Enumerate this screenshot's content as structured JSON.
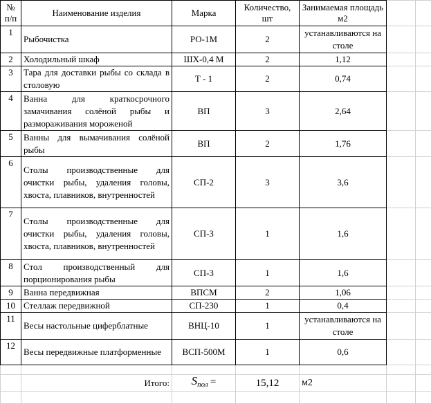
{
  "table": {
    "header": [
      "№ п/п",
      "Наименование изделия",
      "Марка",
      "Количество, шт",
      "Занимаемая площадь м2"
    ],
    "rows": [
      [
        "1",
        "Рыбочистка",
        "РО-1М",
        "2",
        "устанавливаются на столе"
      ],
      [
        "2",
        "Холодильный шкаф",
        "ШХ-0,4 М",
        "2",
        "1,12"
      ],
      [
        "3",
        "Тара для доставки рыбы со склада в столовую",
        "Т - 1",
        "2",
        "0,74"
      ],
      [
        "4",
        "Ванна для краткосрочного замачивания солёной рыбы и размораживания мороженой",
        "ВП",
        "3",
        "2,64"
      ],
      [
        "5",
        "Ванны для вымачивания солёной рыбы",
        "ВП",
        "2",
        "1,76"
      ],
      [
        "6",
        "Столы производственные для очистки рыбы, удаления головы, хвоста, плавников, внутренностей",
        "СП-2",
        "3",
        "3,6"
      ],
      [
        "7",
        "Столы производственные для очистки рыбы, удаления головы, хвоста, плавников, внутренностей",
        "СП-3",
        "1",
        "1,6"
      ],
      [
        "8",
        "Стол производственный для порционирования рыбы",
        "СП-3",
        "1",
        "1,6"
      ],
      [
        "9",
        "Ванна передвижная",
        "ВПСМ",
        "2",
        "1,06"
      ],
      [
        "10",
        "Стеллаж передвижной",
        "СП-230",
        "1",
        "0,4"
      ],
      [
        "11",
        "Весы настольные циферблатные",
        "ВНЦ-10",
        "1",
        "устанавливаются на столе"
      ],
      [
        "12",
        "Весы передвижные платформенные",
        "ВСП-500М",
        "1",
        "0,6"
      ]
    ],
    "total": {
      "label": "Итого:",
      "symbol": "S",
      "subscript": "пол",
      "equals": "=",
      "value": "15,12",
      "unit": "м2"
    }
  }
}
